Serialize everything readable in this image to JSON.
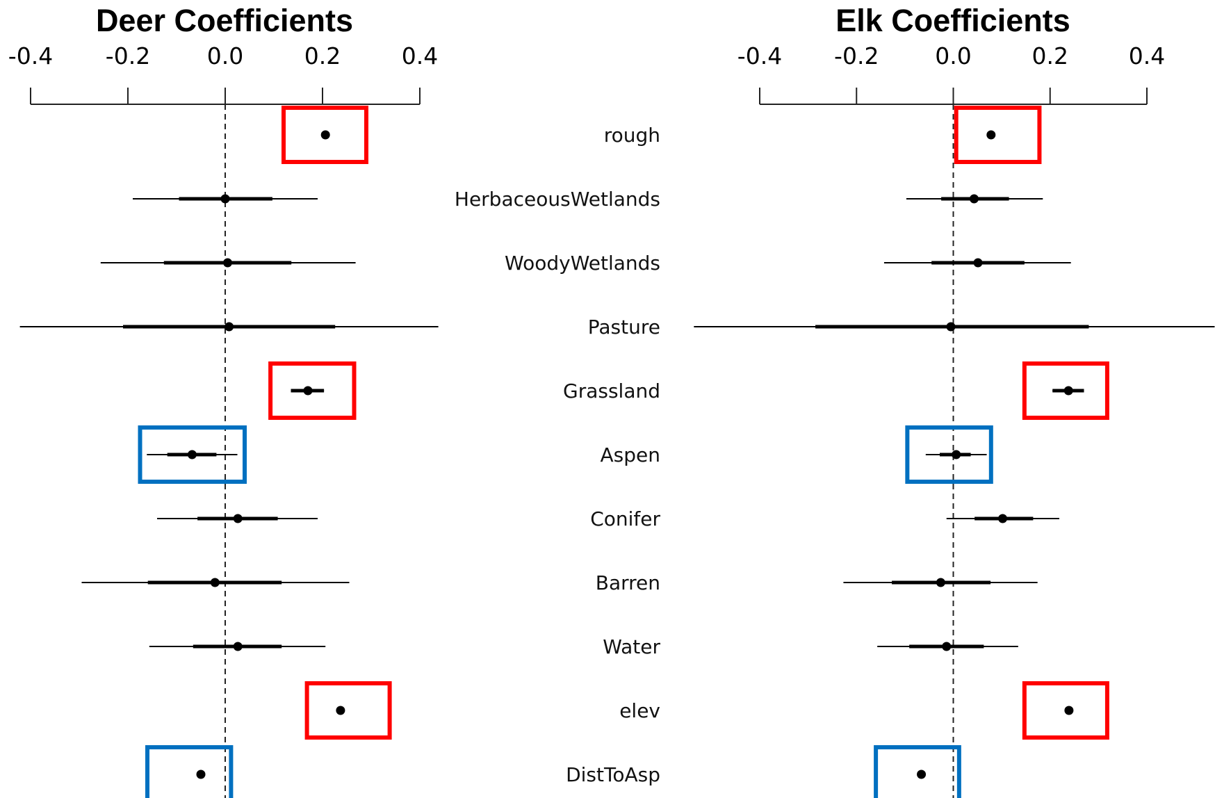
{
  "chart_data": [
    {
      "type": "scatter",
      "title": "Deer Coefficients",
      "xlim": [
        -0.4,
        0.4
      ],
      "ticks": [
        "-0.4",
        "-0.2",
        "0.0",
        "0.2",
        "0.4"
      ],
      "tick_values": [
        -0.4,
        -0.2,
        0.0,
        0.2,
        0.4
      ],
      "reference_line": 0.0,
      "categories": [
        "rough",
        "HerbaceousWetlands",
        "WoodyWetlands",
        "Pasture",
        "Grassland",
        "Aspen",
        "Conifer",
        "Barren",
        "Water",
        "elev",
        "DistToAsp"
      ],
      "estimates": [
        0.206,
        0.0,
        0.005,
        0.008,
        0.17,
        -0.068,
        0.026,
        -0.021,
        0.026,
        0.237,
        -0.05
      ],
      "inner_interval": [
        [
          0.206,
          0.206
        ],
        [
          -0.095,
          0.097
        ],
        [
          -0.126,
          0.136
        ],
        [
          -0.21,
          0.226
        ],
        [
          0.135,
          0.203
        ],
        [
          -0.119,
          -0.018
        ],
        [
          -0.057,
          0.108
        ],
        [
          -0.159,
          0.116
        ],
        [
          -0.066,
          0.116
        ],
        [
          0.237,
          0.237
        ],
        [
          -0.05,
          -0.05
        ]
      ],
      "outer_interval": [
        [
          0.206,
          0.206
        ],
        [
          -0.19,
          0.19
        ],
        [
          -0.256,
          0.268
        ],
        [
          -0.422,
          0.438
        ],
        [
          0.135,
          0.203
        ],
        [
          -0.161,
          0.025
        ],
        [
          -0.14,
          0.19
        ],
        [
          -0.295,
          0.255
        ],
        [
          -0.156,
          0.206
        ],
        [
          0.237,
          0.237
        ],
        [
          -0.05,
          -0.05
        ]
      ],
      "highlights": [
        {
          "category": "rough",
          "color": "#ff0000",
          "range": [
            0.12,
            0.29
          ]
        },
        {
          "category": "Grassland",
          "color": "#ff0000",
          "range": [
            0.093,
            0.265
          ]
        },
        {
          "category": "Aspen",
          "color": "#0070c0",
          "range": [
            -0.175,
            0.04
          ]
        },
        {
          "category": "elev",
          "color": "#ff0000",
          "range": [
            0.168,
            0.338
          ]
        },
        {
          "category": "DistToAsp",
          "color": "#0070c0",
          "range": [
            -0.16,
            0.012
          ]
        }
      ]
    },
    {
      "type": "scatter",
      "title": "Elk Coefficients",
      "xlim": [
        -0.4,
        0.4
      ],
      "ticks": [
        "-0.4",
        "-0.2",
        "0.0",
        "0.2",
        "0.4"
      ],
      "tick_values": [
        -0.4,
        -0.2,
        0.0,
        0.2,
        0.4
      ],
      "reference_line": 0.0,
      "categories": [
        "rough",
        "HerbaceousWetlands",
        "WoodyWetlands",
        "Pasture",
        "Grassland",
        "Aspen",
        "Conifer",
        "Barren",
        "Water",
        "elev",
        "DistToAsp"
      ],
      "estimates": [
        0.078,
        0.043,
        0.051,
        -0.005,
        0.238,
        0.006,
        0.102,
        -0.026,
        -0.014,
        0.239,
        -0.066
      ],
      "inner_interval": [
        [
          0.078,
          0.078
        ],
        [
          -0.025,
          0.115
        ],
        [
          -0.045,
          0.147
        ],
        [
          -0.285,
          0.28
        ],
        [
          0.205,
          0.27
        ],
        [
          -0.028,
          0.036
        ],
        [
          0.044,
          0.165
        ],
        [
          -0.127,
          0.077
        ],
        [
          -0.091,
          0.063
        ],
        [
          0.239,
          0.239
        ],
        [
          -0.066,
          -0.066
        ]
      ],
      "outer_interval": [
        [
          0.078,
          0.078
        ],
        [
          -0.097,
          0.185
        ],
        [
          -0.143,
          0.243
        ],
        [
          -0.536,
          0.54
        ],
        [
          0.205,
          0.27
        ],
        [
          -0.057,
          0.069
        ],
        [
          -0.014,
          0.219
        ],
        [
          -0.227,
          0.174
        ],
        [
          -0.157,
          0.134
        ],
        [
          0.239,
          0.239
        ],
        [
          -0.066,
          -0.066
        ]
      ],
      "highlights": [
        {
          "category": "rough",
          "color": "#ff0000",
          "range": [
            0.006,
            0.178
          ]
        },
        {
          "category": "Grassland",
          "color": "#ff0000",
          "range": [
            0.147,
            0.318
          ]
        },
        {
          "category": "Aspen",
          "color": "#0070c0",
          "range": [
            -0.095,
            0.078
          ]
        },
        {
          "category": "elev",
          "color": "#ff0000",
          "range": [
            0.147,
            0.318
          ]
        },
        {
          "category": "DistToAsp",
          "color": "#0070c0",
          "range": [
            -0.16,
            0.012
          ]
        }
      ]
    }
  ]
}
